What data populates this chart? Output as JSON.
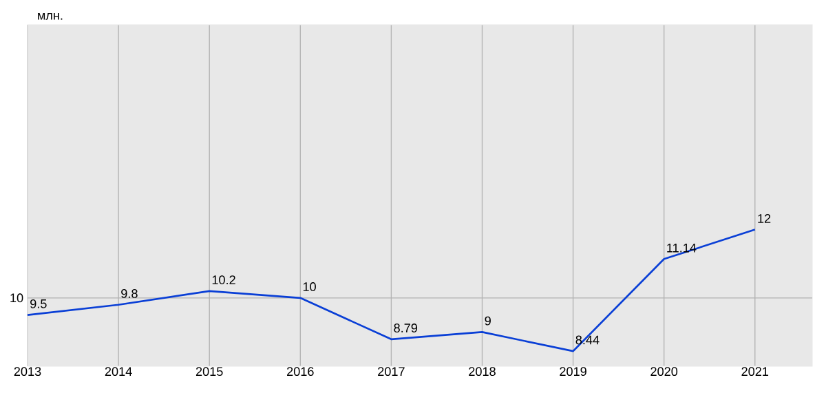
{
  "chart_data": {
    "type": "line",
    "ylabel": "млн.",
    "x": [
      2013,
      2014,
      2015,
      2016,
      2017,
      2018,
      2019,
      2020,
      2021
    ],
    "series": [
      {
        "color": "#0a3fd6",
        "values": [
          9.5,
          9.8,
          10.2,
          10,
          8.79,
          9,
          8.44,
          11.14,
          12
        ]
      }
    ],
    "xlim": [
      2013,
      2021.63
    ],
    "xticks": [
      2013,
      2014,
      2015,
      2016,
      2017,
      2018,
      2019,
      2020,
      2021
    ],
    "ylim": [
      8,
      18
    ],
    "ref_lines": [
      {
        "axis": "y",
        "value": 10,
        "label": "10"
      }
    ],
    "grid": "x",
    "data_labels": true,
    "marker": "none",
    "line_style": "solid"
  }
}
